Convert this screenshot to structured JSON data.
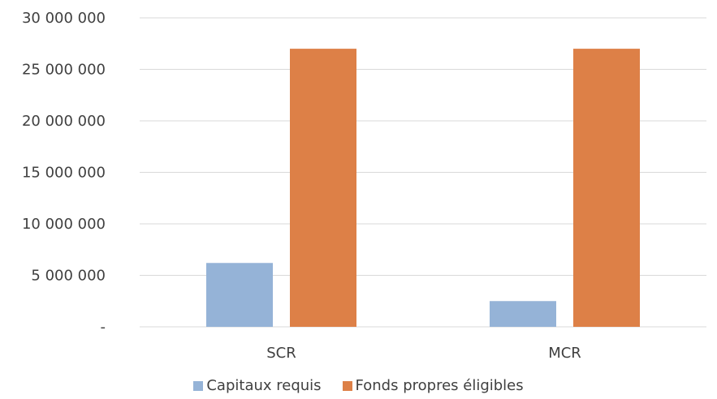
{
  "chart_data": {
    "type": "bar",
    "categories": [
      "SCR",
      "MCR"
    ],
    "series": [
      {
        "name": "Capitaux requis",
        "values": [
          6200000,
          2500000
        ],
        "color": "#95B3D7"
      },
      {
        "name": "Fonds propres éligibles",
        "values": [
          27000000,
          27000000
        ],
        "color": "#DD8047"
      }
    ],
    "ylim": [
      0,
      30000000
    ],
    "y_ticks": [
      {
        "value": 0,
        "label": "-"
      },
      {
        "value": 5000000,
        "label": "5 000 000"
      },
      {
        "value": 10000000,
        "label": "10 000 000"
      },
      {
        "value": 15000000,
        "label": "15 000 000"
      },
      {
        "value": 20000000,
        "label": "20 000 000"
      },
      {
        "value": 25000000,
        "label": "25 000 000"
      },
      {
        "value": 30000000,
        "label": "30 000 000"
      }
    ],
    "grid": true,
    "legend_position": "bottom",
    "gridline_color": "#D9D9D9"
  }
}
